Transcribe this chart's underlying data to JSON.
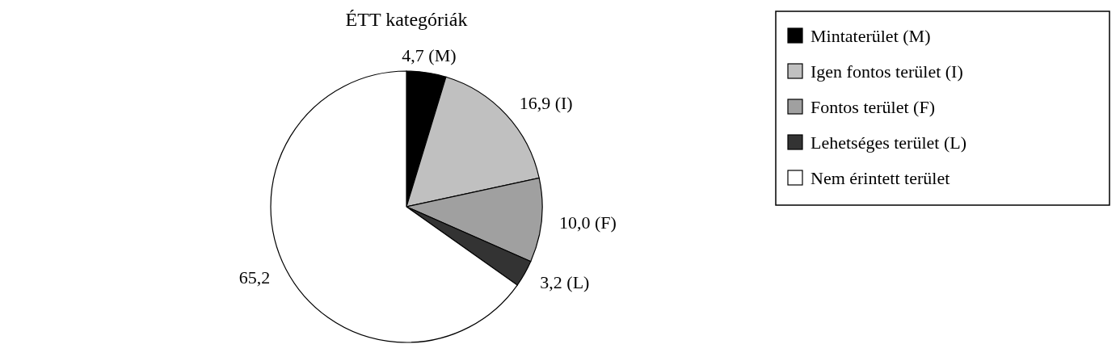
{
  "chart_data": {
    "type": "pie",
    "title": "ÉTT kategóriák",
    "categories": [
      "Mintaterület (M)",
      "Igen fontos terület (I)",
      "Fontos terület (F)",
      "Lehetséges terület (L)",
      "Nem érintett terület"
    ],
    "values": [
      4.7,
      16.9,
      10.0,
      3.2,
      65.2
    ],
    "colors": [
      "#000000",
      "#c0c0c0",
      "#a0a0a0",
      "#333333",
      "#ffffff"
    ],
    "value_labels": [
      "4,7 (M)",
      "16,9 (I)",
      "10,0 (F)",
      "3,2 (L)",
      "65,2"
    ],
    "legend": "top right"
  }
}
